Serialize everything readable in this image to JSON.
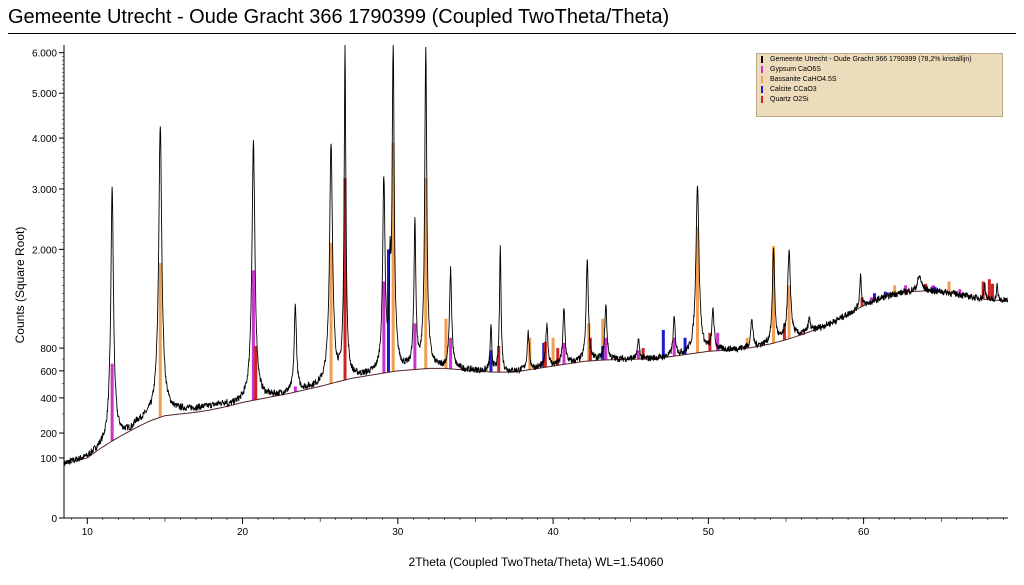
{
  "title": "Gemeente Utrecht - Oude Gracht 366 1790399 (Coupled TwoTheta/Theta)",
  "chart_data": {
    "type": "line",
    "title": "Gemeente Utrecht - Oude Gracht 366 1790399 (Coupled TwoTheta/Theta)",
    "xlabel": "2Theta (Coupled TwoTheta/Theta) WL=1.54060",
    "ylabel": "Counts (Square Root)",
    "y_scale": "sqrt",
    "xlim": [
      8.5,
      69.3
    ],
    "ylim": [
      0,
      6200
    ],
    "x_ticks": [
      10,
      20,
      30,
      40,
      50,
      60
    ],
    "y_ticks": [
      0,
      100,
      200,
      400,
      600,
      800,
      2000,
      3000,
      4000,
      5000,
      6000
    ],
    "y_tick_labels": [
      "0",
      "100",
      "200",
      "400",
      "600",
      "800",
      "2.000",
      "3.000",
      "4.000",
      "5.000",
      "6.000"
    ],
    "legend_position": "top-right",
    "series": [
      {
        "name": "Gemeente Utrecht - Oude Gracht 366 1790399 (78,2% kristallijn)",
        "color": "#000000",
        "background": [
          [
            8.5,
            80
          ],
          [
            10,
            100
          ],
          [
            11,
            140
          ],
          [
            12,
            180
          ],
          [
            13,
            220
          ],
          [
            14,
            260
          ],
          [
            15,
            290
          ],
          [
            16,
            300
          ],
          [
            17,
            310
          ],
          [
            18,
            325
          ],
          [
            19,
            345
          ],
          [
            20,
            370
          ],
          [
            21,
            390
          ],
          [
            22,
            410
          ],
          [
            23,
            430
          ],
          [
            24,
            455
          ],
          [
            25,
            480
          ],
          [
            26,
            510
          ],
          [
            27,
            540
          ],
          [
            28,
            560
          ],
          [
            29,
            580
          ],
          [
            30,
            600
          ],
          [
            31,
            610
          ],
          [
            32,
            620
          ],
          [
            33,
            620
          ],
          [
            34,
            610
          ],
          [
            35,
            600
          ],
          [
            36,
            590
          ],
          [
            37,
            590
          ],
          [
            38,
            600
          ],
          [
            39,
            620
          ],
          [
            40,
            640
          ],
          [
            41,
            660
          ],
          [
            42,
            680
          ],
          [
            43,
            690
          ],
          [
            44,
            695
          ],
          [
            45,
            700
          ],
          [
            46,
            700
          ],
          [
            47,
            710
          ],
          [
            48,
            730
          ],
          [
            49,
            750
          ],
          [
            50,
            770
          ],
          [
            51,
            780
          ],
          [
            52,
            790
          ],
          [
            53,
            810
          ],
          [
            54,
            840
          ],
          [
            55,
            880
          ],
          [
            56,
            930
          ],
          [
            57,
            990
          ],
          [
            58,
            1060
          ],
          [
            59,
            1150
          ],
          [
            60,
            1250
          ],
          [
            61,
            1330
          ],
          [
            62,
            1390
          ],
          [
            63,
            1420
          ],
          [
            64,
            1430
          ],
          [
            65,
            1420
          ],
          [
            66,
            1390
          ],
          [
            67,
            1350
          ],
          [
            68,
            1320
          ],
          [
            69,
            1310
          ],
          [
            69.3,
            1310
          ]
        ],
        "peaks": [
          {
            "x": 11.6,
            "y": 3050,
            "w": 0.15
          },
          {
            "x": 14.7,
            "y": 4250,
            "w": 0.18
          },
          {
            "x": 20.7,
            "y": 3900,
            "w": 0.18
          },
          {
            "x": 23.4,
            "y": 1250,
            "w": 0.15
          },
          {
            "x": 25.7,
            "y": 3900,
            "w": 0.18
          },
          {
            "x": 26.6,
            "y": 6200,
            "w": 0.1
          },
          {
            "x": 29.1,
            "y": 3200,
            "w": 0.15
          },
          {
            "x": 29.5,
            "y": 1600,
            "w": 0.1
          },
          {
            "x": 29.7,
            "y": 6200,
            "w": 0.12
          },
          {
            "x": 31.1,
            "y": 2500,
            "w": 0.12
          },
          {
            "x": 31.8,
            "y": 6200,
            "w": 0.12
          },
          {
            "x": 33.4,
            "y": 1700,
            "w": 0.15
          },
          {
            "x": 36.0,
            "y": 1000,
            "w": 0.12
          },
          {
            "x": 36.6,
            "y": 2100,
            "w": 0.1
          },
          {
            "x": 38.4,
            "y": 950,
            "w": 0.15
          },
          {
            "x": 39.6,
            "y": 1050,
            "w": 0.15
          },
          {
            "x": 40.7,
            "y": 1200,
            "w": 0.15
          },
          {
            "x": 42.2,
            "y": 1850,
            "w": 0.15
          },
          {
            "x": 43.4,
            "y": 1250,
            "w": 0.15
          },
          {
            "x": 45.5,
            "y": 900,
            "w": 0.12
          },
          {
            "x": 47.8,
            "y": 1100,
            "w": 0.15
          },
          {
            "x": 49.3,
            "y": 3100,
            "w": 0.2
          },
          {
            "x": 50.3,
            "y": 1200,
            "w": 0.15
          },
          {
            "x": 52.8,
            "y": 1100,
            "w": 0.15
          },
          {
            "x": 54.2,
            "y": 2000,
            "w": 0.15
          },
          {
            "x": 55.2,
            "y": 1950,
            "w": 0.2
          },
          {
            "x": 56.5,
            "y": 1100,
            "w": 0.15
          },
          {
            "x": 59.8,
            "y": 1650,
            "w": 0.12
          },
          {
            "x": 63.6,
            "y": 1620,
            "w": 0.3
          },
          {
            "x": 67.8,
            "y": 1550,
            "w": 0.1
          },
          {
            "x": 68.6,
            "y": 1500,
            "w": 0.1
          }
        ]
      },
      {
        "name": "Gypsum CaO6S",
        "color": "#cc33cc",
        "peaks_x_y": [
          [
            11.6,
            660
          ],
          [
            20.7,
            1700
          ],
          [
            23.4,
            480
          ],
          [
            29.1,
            1550
          ],
          [
            31.1,
            1050
          ],
          [
            33.4,
            900
          ],
          [
            40.7,
            850
          ],
          [
            43.4,
            900
          ],
          [
            45.5,
            780
          ],
          [
            47.8,
            900
          ],
          [
            50.6,
            950
          ],
          [
            56.0,
            950
          ],
          [
            60.5,
            1350
          ],
          [
            62.7,
            1500
          ],
          [
            64.5,
            1500
          ],
          [
            66.2,
            1450
          ]
        ]
      },
      {
        "name": "Bassanite CaHO4.5S",
        "color": "#f0a050",
        "peaks_x_y": [
          [
            14.7,
            1800
          ],
          [
            25.7,
            2100
          ],
          [
            29.7,
            3900
          ],
          [
            31.8,
            3200
          ],
          [
            33.1,
            1100
          ],
          [
            38.5,
            900
          ],
          [
            40.0,
            900
          ],
          [
            42.3,
            1050
          ],
          [
            43.2,
            1100
          ],
          [
            49.3,
            2350
          ],
          [
            52.5,
            900
          ],
          [
            54.2,
            2050
          ],
          [
            55.2,
            1500
          ],
          [
            57.3,
            1000
          ],
          [
            62.0,
            1500
          ],
          [
            65.5,
            1550
          ]
        ]
      },
      {
        "name": "Calcite CCaO3",
        "color": "#1c1ccc",
        "peaks_x_y": [
          [
            23.0,
            430
          ],
          [
            29.4,
            2000
          ],
          [
            36.0,
            780
          ],
          [
            39.4,
            850
          ],
          [
            43.2,
            820
          ],
          [
            47.1,
            980
          ],
          [
            48.5,
            900
          ],
          [
            57.4,
            1010
          ],
          [
            60.7,
            1400
          ],
          [
            61.4,
            1420
          ],
          [
            64.6,
            1480
          ]
        ]
      },
      {
        "name": "Quartz O2Si",
        "color": "#cc2222",
        "peaks_x_y": [
          [
            20.85,
            820
          ],
          [
            26.6,
            3200
          ],
          [
            36.5,
            820
          ],
          [
            39.5,
            860
          ],
          [
            40.3,
            800
          ],
          [
            42.4,
            900
          ],
          [
            45.8,
            800
          ],
          [
            50.1,
            950
          ],
          [
            54.9,
            1050
          ],
          [
            59.9,
            1350
          ],
          [
            64.0,
            1520
          ],
          [
            67.7,
            1550
          ],
          [
            68.1,
            1580
          ],
          [
            68.3,
            1520
          ]
        ]
      }
    ]
  }
}
